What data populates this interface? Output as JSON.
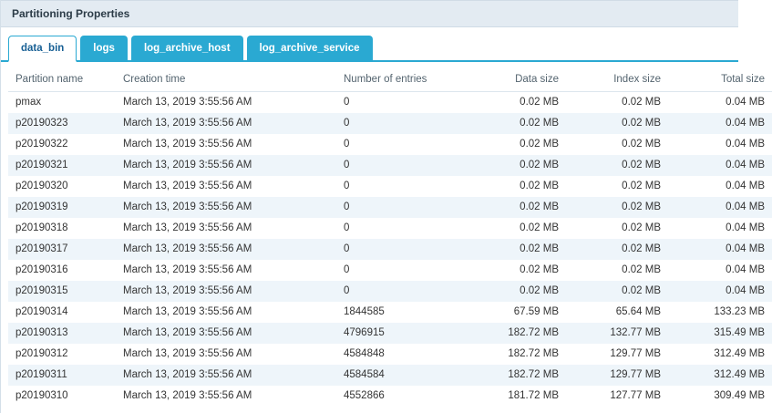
{
  "header": {
    "title": "Partitioning Properties"
  },
  "tabs": [
    {
      "label": "data_bin",
      "active": true
    },
    {
      "label": "logs",
      "active": false
    },
    {
      "label": "log_archive_host",
      "active": false
    },
    {
      "label": "log_archive_service",
      "active": false
    }
  ],
  "colors": {
    "accent_cyan": "#2aa9d2",
    "active_tab_text": "#175f94",
    "titlebar_bg": "#e3ebf2",
    "row_alt_bg": "#eef5fa"
  },
  "table": {
    "columns": [
      "Partition name",
      "Creation time",
      "Number of entries",
      "Data size",
      "Index size",
      "Total size"
    ],
    "rows": [
      [
        "pmax",
        "March 13, 2019 3:55:56 AM",
        "0",
        "0.02 MB",
        "0.02 MB",
        "0.04 MB"
      ],
      [
        "p20190323",
        "March 13, 2019 3:55:56 AM",
        "0",
        "0.02 MB",
        "0.02 MB",
        "0.04 MB"
      ],
      [
        "p20190322",
        "March 13, 2019 3:55:56 AM",
        "0",
        "0.02 MB",
        "0.02 MB",
        "0.04 MB"
      ],
      [
        "p20190321",
        "March 13, 2019 3:55:56 AM",
        "0",
        "0.02 MB",
        "0.02 MB",
        "0.04 MB"
      ],
      [
        "p20190320",
        "March 13, 2019 3:55:56 AM",
        "0",
        "0.02 MB",
        "0.02 MB",
        "0.04 MB"
      ],
      [
        "p20190319",
        "March 13, 2019 3:55:56 AM",
        "0",
        "0.02 MB",
        "0.02 MB",
        "0.04 MB"
      ],
      [
        "p20190318",
        "March 13, 2019 3:55:56 AM",
        "0",
        "0.02 MB",
        "0.02 MB",
        "0.04 MB"
      ],
      [
        "p20190317",
        "March 13, 2019 3:55:56 AM",
        "0",
        "0.02 MB",
        "0.02 MB",
        "0.04 MB"
      ],
      [
        "p20190316",
        "March 13, 2019 3:55:56 AM",
        "0",
        "0.02 MB",
        "0.02 MB",
        "0.04 MB"
      ],
      [
        "p20190315",
        "March 13, 2019 3:55:56 AM",
        "0",
        "0.02 MB",
        "0.02 MB",
        "0.04 MB"
      ],
      [
        "p20190314",
        "March 13, 2019 3:55:56 AM",
        "1844585",
        "67.59 MB",
        "65.64 MB",
        "133.23 MB"
      ],
      [
        "p20190313",
        "March 13, 2019 3:55:56 AM",
        "4796915",
        "182.72 MB",
        "132.77 MB",
        "315.49 MB"
      ],
      [
        "p20190312",
        "March 13, 2019 3:55:56 AM",
        "4584848",
        "182.72 MB",
        "129.77 MB",
        "312.49 MB"
      ],
      [
        "p20190311",
        "March 13, 2019 3:55:56 AM",
        "4584584",
        "182.72 MB",
        "129.77 MB",
        "312.49 MB"
      ],
      [
        "p20190310",
        "March 13, 2019 3:55:56 AM",
        "4552866",
        "181.72 MB",
        "127.77 MB",
        "309.49 MB"
      ]
    ]
  }
}
